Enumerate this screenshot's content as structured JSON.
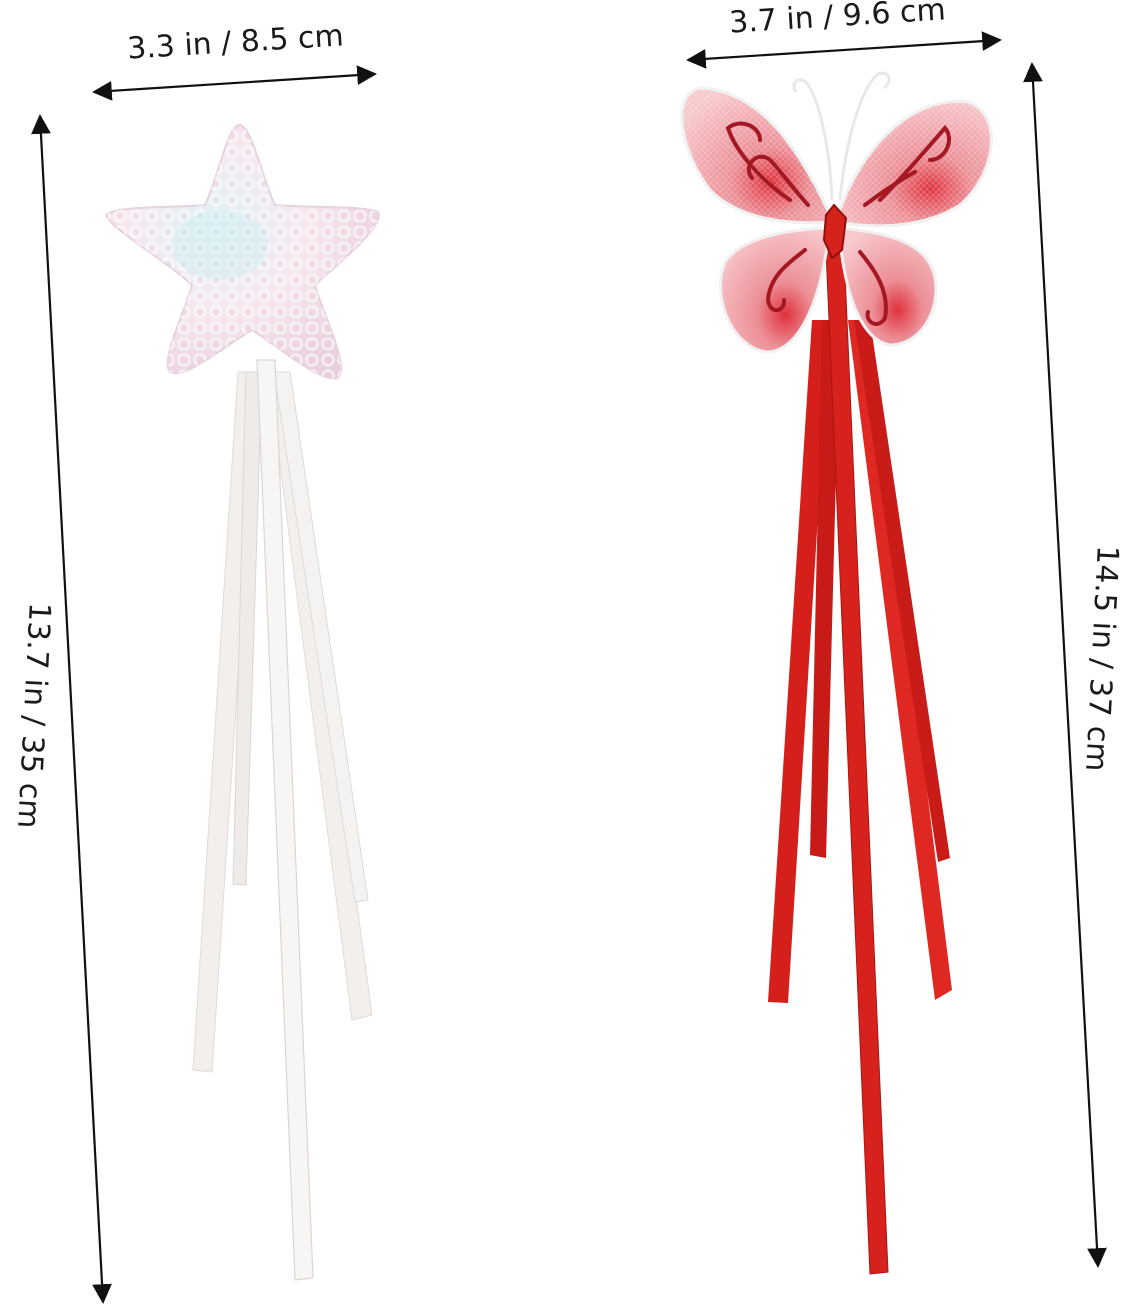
{
  "image": {
    "subjects": [
      "star-fairy-wand",
      "butterfly-fairy-wand"
    ],
    "colors": {
      "star_sequins": "#f4e6ee",
      "star_shadow": "#d9c9d6",
      "white_ribbon": "#f3f1ef",
      "red_ribbon": "#d81f1a",
      "butterfly_wing": "#f1b2b7",
      "butterfly_outline": "#a81a24"
    }
  },
  "dimensions": {
    "star_width": "3.3 in / 8.5 cm",
    "star_height": "13.7 in / 35 cm",
    "butterfly_width": "3.7 in / 9.6 cm",
    "butterfly_height": "14.5 in / 37 cm"
  }
}
